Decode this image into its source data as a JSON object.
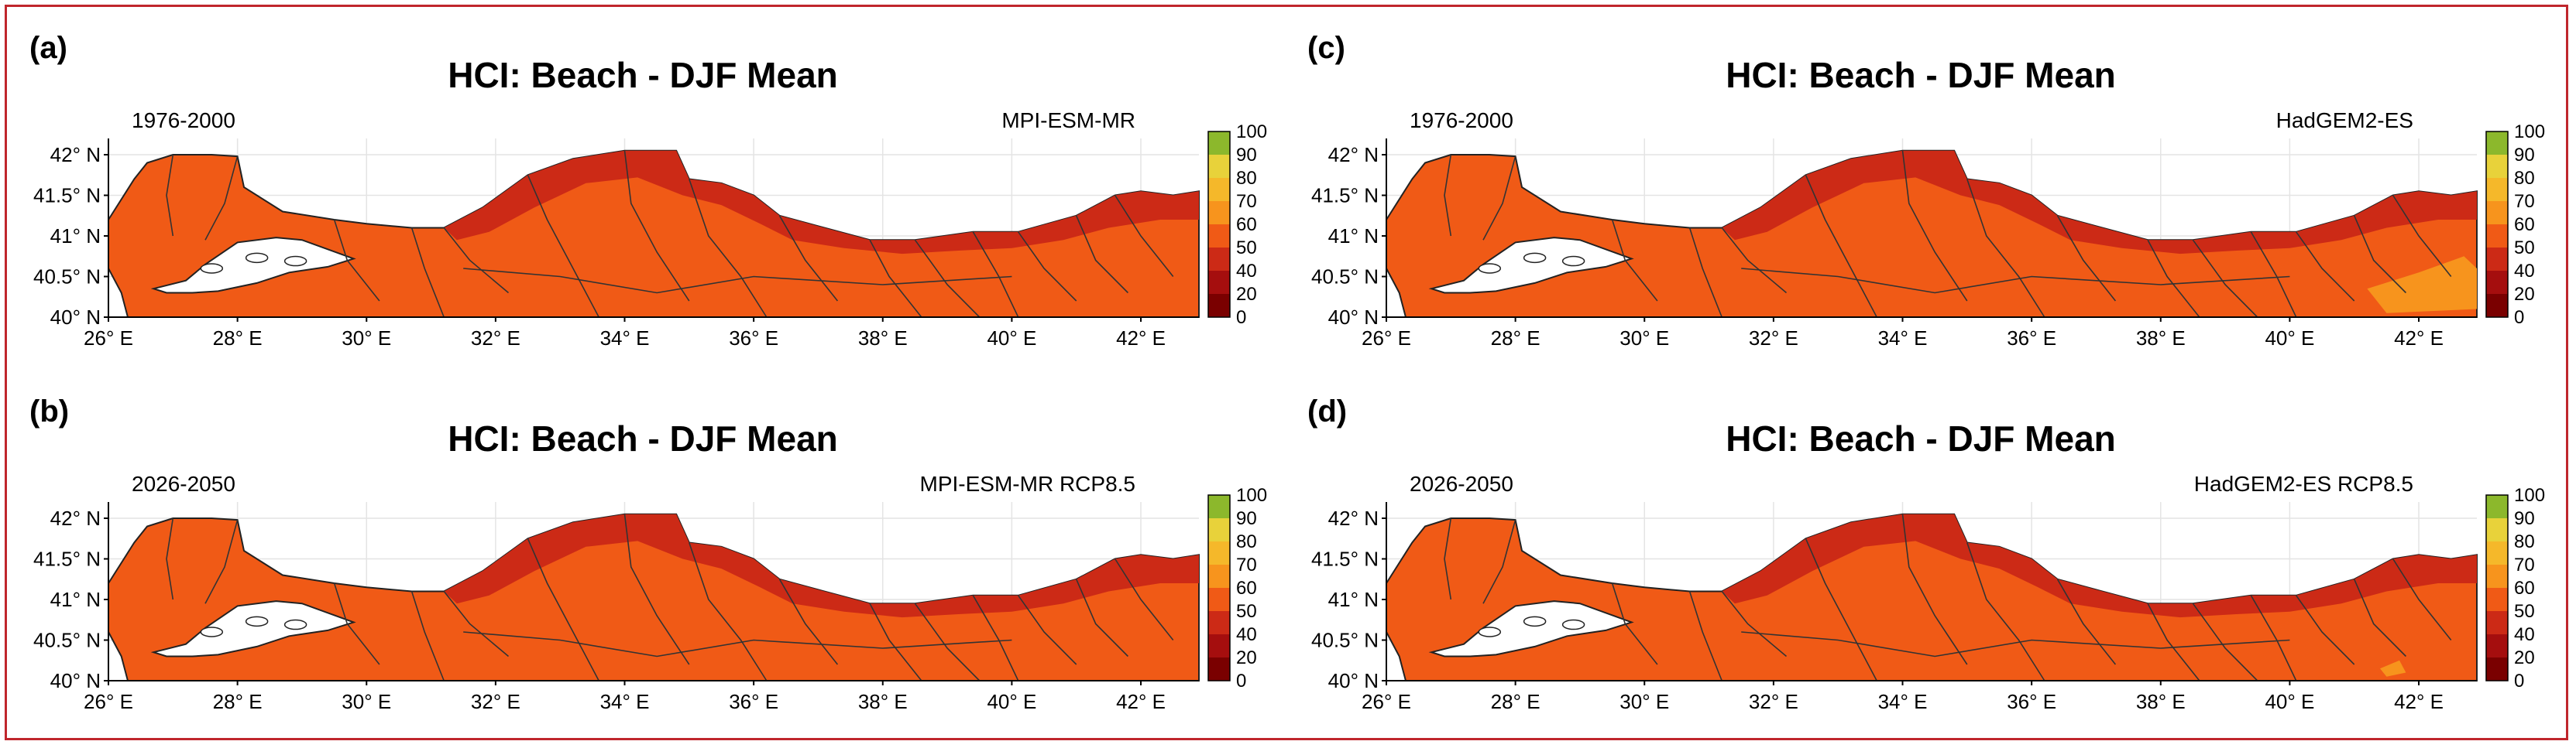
{
  "chart_data": [
    {
      "type": "heatmap",
      "panel_label": "(a)",
      "title": "HCI: Beach - DJF Mean",
      "period": "1976-2000",
      "model": "MPI-ESM-MR",
      "xticks": [
        "26° E",
        "28° E",
        "30° E",
        "32° E",
        "34° E",
        "36° E",
        "38° E",
        "40° E",
        "42° E"
      ],
      "yticks": [
        "40° N",
        "40.5° N",
        "41° N",
        "41.5° N",
        "42° N"
      ],
      "xlim": [
        26,
        42.9
      ],
      "ylim": [
        40,
        42.2
      ],
      "colorbar_ticks": [
        "0",
        "20",
        "40",
        "50",
        "60",
        "70",
        "80",
        "90",
        "100"
      ],
      "dominant_value_range": [
        50,
        60
      ],
      "coastal_value_range": [
        40,
        50
      ]
    },
    {
      "type": "heatmap",
      "panel_label": "(b)",
      "title": "HCI: Beach - DJF Mean",
      "period": "2026-2050",
      "model": "MPI-ESM-MR RCP8.5",
      "xticks": [
        "26° E",
        "28° E",
        "30° E",
        "32° E",
        "34° E",
        "36° E",
        "38° E",
        "40° E",
        "42° E"
      ],
      "yticks": [
        "40° N",
        "40.5° N",
        "41° N",
        "41.5° N",
        "42° N"
      ],
      "xlim": [
        26,
        42.9
      ],
      "ylim": [
        40,
        42.2
      ],
      "colorbar_ticks": [
        "0",
        "20",
        "40",
        "50",
        "60",
        "70",
        "80",
        "90",
        "100"
      ],
      "dominant_value_range": [
        50,
        60
      ],
      "coastal_value_range": [
        40,
        50
      ]
    },
    {
      "type": "heatmap",
      "panel_label": "(c)",
      "title": "HCI: Beach - DJF Mean",
      "period": "1976-2000",
      "model": "HadGEM2-ES",
      "xticks": [
        "26° E",
        "28° E",
        "30° E",
        "32° E",
        "34° E",
        "36° E",
        "38° E",
        "40° E",
        "42° E"
      ],
      "yticks": [
        "40° N",
        "40.5° N",
        "41° N",
        "41.5° N",
        "42° N"
      ],
      "xlim": [
        26,
        42.9
      ],
      "ylim": [
        40,
        42.2
      ],
      "colorbar_ticks": [
        "0",
        "20",
        "40",
        "50",
        "60",
        "70",
        "80",
        "90",
        "100"
      ],
      "dominant_value_range": [
        50,
        60
      ],
      "coastal_value_range": [
        40,
        50
      ]
    },
    {
      "type": "heatmap",
      "panel_label": "(d)",
      "title": "HCI: Beach - DJF Mean",
      "period": "2026-2050",
      "model": "HadGEM2-ES RCP8.5",
      "xticks": [
        "26° E",
        "28° E",
        "30° E",
        "32° E",
        "34° E",
        "36° E",
        "38° E",
        "40° E",
        "42° E"
      ],
      "yticks": [
        "40° N",
        "40.5° N",
        "41° N",
        "41.5° N",
        "42° N"
      ],
      "xlim": [
        26,
        42.9
      ],
      "ylim": [
        40,
        42.2
      ],
      "colorbar_ticks": [
        "0",
        "20",
        "40",
        "50",
        "60",
        "70",
        "80",
        "90",
        "100"
      ],
      "dominant_value_range": [
        50,
        60
      ],
      "coastal_value_range": [
        40,
        50
      ]
    }
  ],
  "colors": {
    "bin_0_20": "#7a0000",
    "bin_20_40": "#a50e0e",
    "bin_40_50": "#cc2a16",
    "bin_50_60": "#f05a16",
    "bin_60_70": "#f7941d",
    "bin_70_80": "#f5b82a",
    "bin_80_90": "#e8d23a",
    "bin_90_100": "#8cb82c",
    "border": "#c0262c"
  }
}
